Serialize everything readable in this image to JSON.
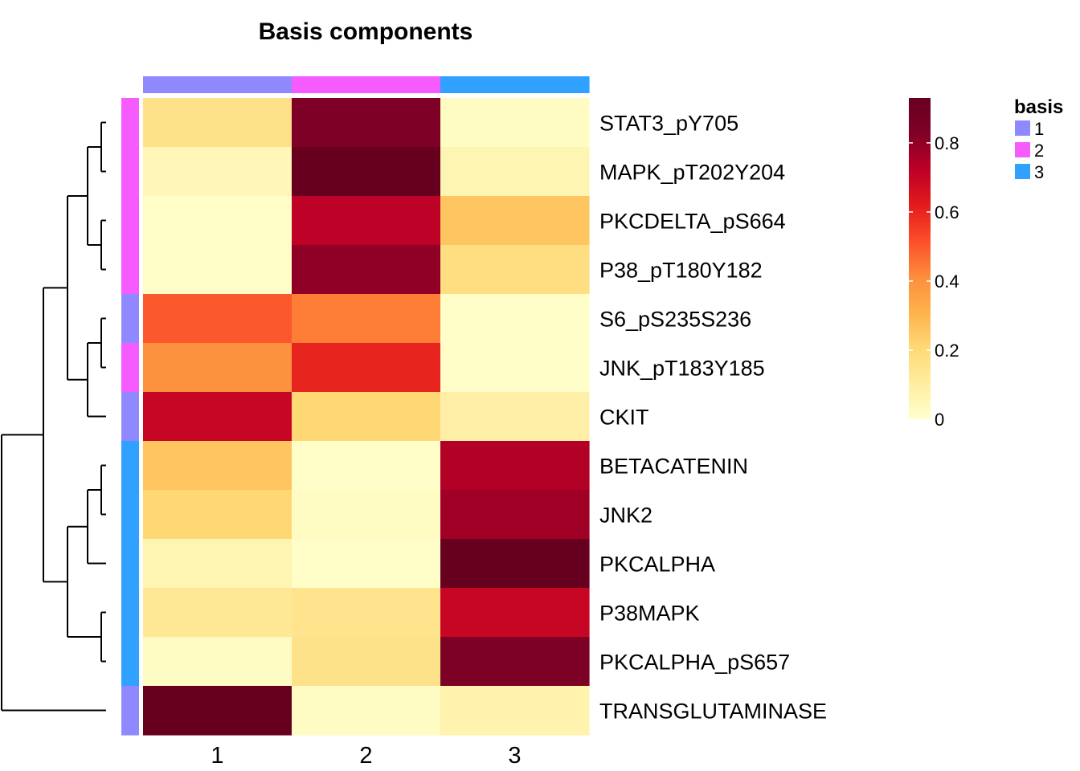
{
  "chart_data": {
    "type": "heatmap",
    "title": "Basis components",
    "columns": [
      "1",
      "2",
      "3"
    ],
    "column_basis": [
      "1",
      "2",
      "3"
    ],
    "rows": [
      "STAT3_pY705",
      "MAPK_pT202Y204",
      "PKCDELTA_pS664",
      "P38_pT180Y182",
      "S6_pS235S236",
      "JNK_pT183Y185",
      "CKIT",
      "BETACATENIN",
      "JNK2",
      "PKCALPHA",
      "P38MAPK",
      "PKCALPHA_pS657",
      "TRANSGLUTAMINASE"
    ],
    "row_basis": [
      "2",
      "2",
      "2",
      "2",
      "1",
      "2",
      "1",
      "3",
      "3",
      "3",
      "3",
      "3",
      "1"
    ],
    "values": [
      [
        0.16,
        0.83,
        0.02
      ],
      [
        0.05,
        0.93,
        0.06
      ],
      [
        0.01,
        0.72,
        0.26
      ],
      [
        0.01,
        0.8,
        0.18
      ],
      [
        0.5,
        0.44,
        0.01
      ],
      [
        0.4,
        0.6,
        0.01
      ],
      [
        0.7,
        0.21,
        0.09
      ],
      [
        0.26,
        0.01,
        0.74
      ],
      [
        0.21,
        0.02,
        0.77
      ],
      [
        0.06,
        0.01,
        0.93
      ],
      [
        0.13,
        0.15,
        0.7
      ],
      [
        0.02,
        0.16,
        0.84
      ],
      [
        0.93,
        0.02,
        0.07
      ]
    ],
    "color_scale": {
      "min": 0,
      "max": 0.93,
      "colors": [
        "#FFFFCC",
        "#FFEDA0",
        "#FED976",
        "#FEB24C",
        "#FD8D3C",
        "#FC4E2A",
        "#E31A1C",
        "#BD0026",
        "#800026",
        "#67001F"
      ],
      "ticks": [
        "0",
        "0.2",
        "0.4",
        "0.6",
        "0.8"
      ],
      "tick_values": [
        0,
        0.2,
        0.4,
        0.6,
        0.8
      ]
    },
    "legend": {
      "title": "basis",
      "entries": [
        {
          "label": "1",
          "color": "#8F88FF"
        },
        {
          "label": "2",
          "color": "#F55BFF"
        },
        {
          "label": "3",
          "color": "#31A1FF"
        }
      ]
    },
    "dendrogram": {
      "description": "row clustering",
      "tree": [
        [
          [
            [
              0,
              1
            ],
            [
              2,
              3
            ]
          ],
          [
            [
              4,
              5
            ],
            6
          ]
        ],
        [
          [
            [
              7,
              8
            ],
            9
          ],
          [
            10,
            11
          ]
        ]
      ],
      "outlier_row": 12
    }
  }
}
